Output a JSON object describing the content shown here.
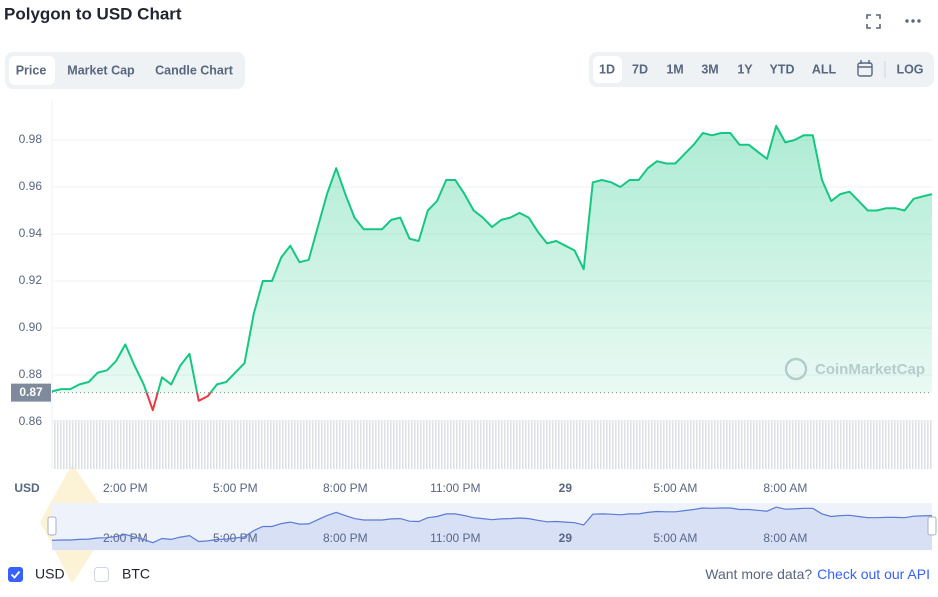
{
  "chart_data": {
    "type": "line",
    "title": "Polygon to USD Chart",
    "tabs": [
      "Price",
      "Market Cap",
      "Candle Chart"
    ],
    "ranges": [
      "1D",
      "7D",
      "1M",
      "3M",
      "1Y",
      "YTD",
      "ALL"
    ],
    "log_label": "LOG",
    "x": [
      12,
      12.25,
      12.5,
      12.75,
      13,
      13.25,
      13.5,
      13.75,
      14,
      14.25,
      14.5,
      14.75,
      15,
      15.25,
      15.5,
      15.75,
      16,
      16.25,
      16.5,
      16.75,
      17,
      17.25,
      17.5,
      17.75,
      18,
      18.25,
      18.5,
      18.75,
      19,
      19.25,
      19.5,
      19.75,
      20,
      20.25,
      20.5,
      20.75,
      21,
      21.25,
      21.5,
      21.75,
      22,
      22.25,
      22.5,
      22.75,
      23,
      23.25,
      23.5,
      23.75,
      24,
      24.25,
      24.5,
      24.75,
      25,
      25.25,
      25.5,
      25.75,
      26,
      26.25,
      26.5,
      26.75,
      27,
      27.25,
      27.5,
      27.75,
      28,
      28.25,
      28.5,
      28.75,
      29,
      29.25,
      29.5,
      29.75,
      30,
      30.25,
      30.5,
      30.75,
      31,
      31.25,
      31.5,
      31.75,
      32,
      32.25,
      32.5,
      32.75,
      33,
      33.25,
      33.5,
      33.75,
      34,
      34.25,
      34.5,
      34.75,
      35,
      35.25,
      35.5,
      35.75,
      36
    ],
    "series": [
      {
        "name": "USD",
        "color": "#16c784",
        "below_color": "#ea3943",
        "values": [
          0.873,
          0.874,
          0.874,
          0.876,
          0.877,
          0.881,
          0.882,
          0.886,
          0.893,
          0.884,
          0.876,
          0.865,
          0.879,
          0.876,
          0.884,
          0.889,
          0.869,
          0.871,
          0.876,
          0.877,
          0.881,
          0.885,
          0.906,
          0.92,
          0.92,
          0.93,
          0.935,
          0.928,
          0.929,
          0.943,
          0.957,
          0.968,
          0.957,
          0.947,
          0.942,
          0.942,
          0.942,
          0.946,
          0.947,
          0.938,
          0.937,
          0.95,
          0.954,
          0.963,
          0.963,
          0.957,
          0.95,
          0.947,
          0.943,
          0.946,
          0.947,
          0.949,
          0.947,
          0.941,
          0.936,
          0.937,
          0.935,
          0.933,
          0.925,
          0.962,
          0.963,
          0.962,
          0.96,
          0.963,
          0.963,
          0.968,
          0.971,
          0.97,
          0.97,
          0.974,
          0.978,
          0.983,
          0.982,
          0.983,
          0.983,
          0.978,
          0.978,
          0.975,
          0.972,
          0.986,
          0.979,
          0.98,
          0.982,
          0.982,
          0.963,
          0.954,
          0.957,
          0.958,
          0.954,
          0.95,
          0.95,
          0.951,
          0.951,
          0.95,
          0.955,
          0.956,
          0.957
        ]
      }
    ],
    "compare": "BTC",
    "reference_price": {
      "value": 0.8725,
      "label": "0.87"
    },
    "xlim": [
      12,
      36
    ],
    "xticks": [
      {
        "value": 14,
        "label": "2:00 PM"
      },
      {
        "value": 17,
        "label": "5:00 PM"
      },
      {
        "value": 20,
        "label": "8:00 PM"
      },
      {
        "value": 23,
        "label": "11:00 PM"
      },
      {
        "value": 26,
        "label": "29"
      },
      {
        "value": 29,
        "label": "5:00 AM"
      },
      {
        "value": 32,
        "label": "8:00 AM"
      }
    ],
    "ylim": [
      0.84,
      1.0
    ],
    "yticks": [
      0.86,
      0.88,
      {
        "value": 0.9,
        "label": "0.90"
      },
      0.92,
      0.94,
      0.96,
      0.98
    ],
    "grid": true,
    "watermark": "CoinMarketCap"
  },
  "footer": {
    "question": "Want more data?",
    "link": "Check out our API"
  }
}
